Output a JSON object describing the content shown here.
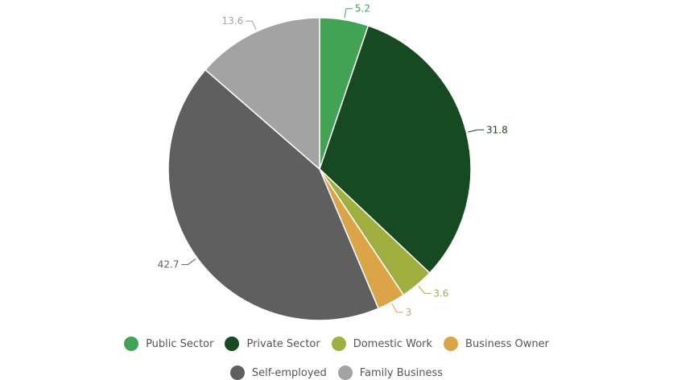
{
  "chart_data": {
    "type": "pie",
    "categories": [
      "Public Sector",
      "Private Sector",
      "Domestic Work",
      "Business Owner",
      "Self-employed",
      "Family Business"
    ],
    "values": [
      5.2,
      31.8,
      3.6,
      3,
      42.7,
      13.6
    ],
    "labels": [
      "5.2",
      "31.8",
      "3.6",
      "3",
      "42.7",
      "13.6"
    ],
    "colors": [
      "#43a355",
      "#184a22",
      "#9fb040",
      "#dba447",
      "#5f5f5f",
      "#a3a3a3"
    ],
    "legend_position": "bottom",
    "start_angle": "top, clockwise"
  }
}
